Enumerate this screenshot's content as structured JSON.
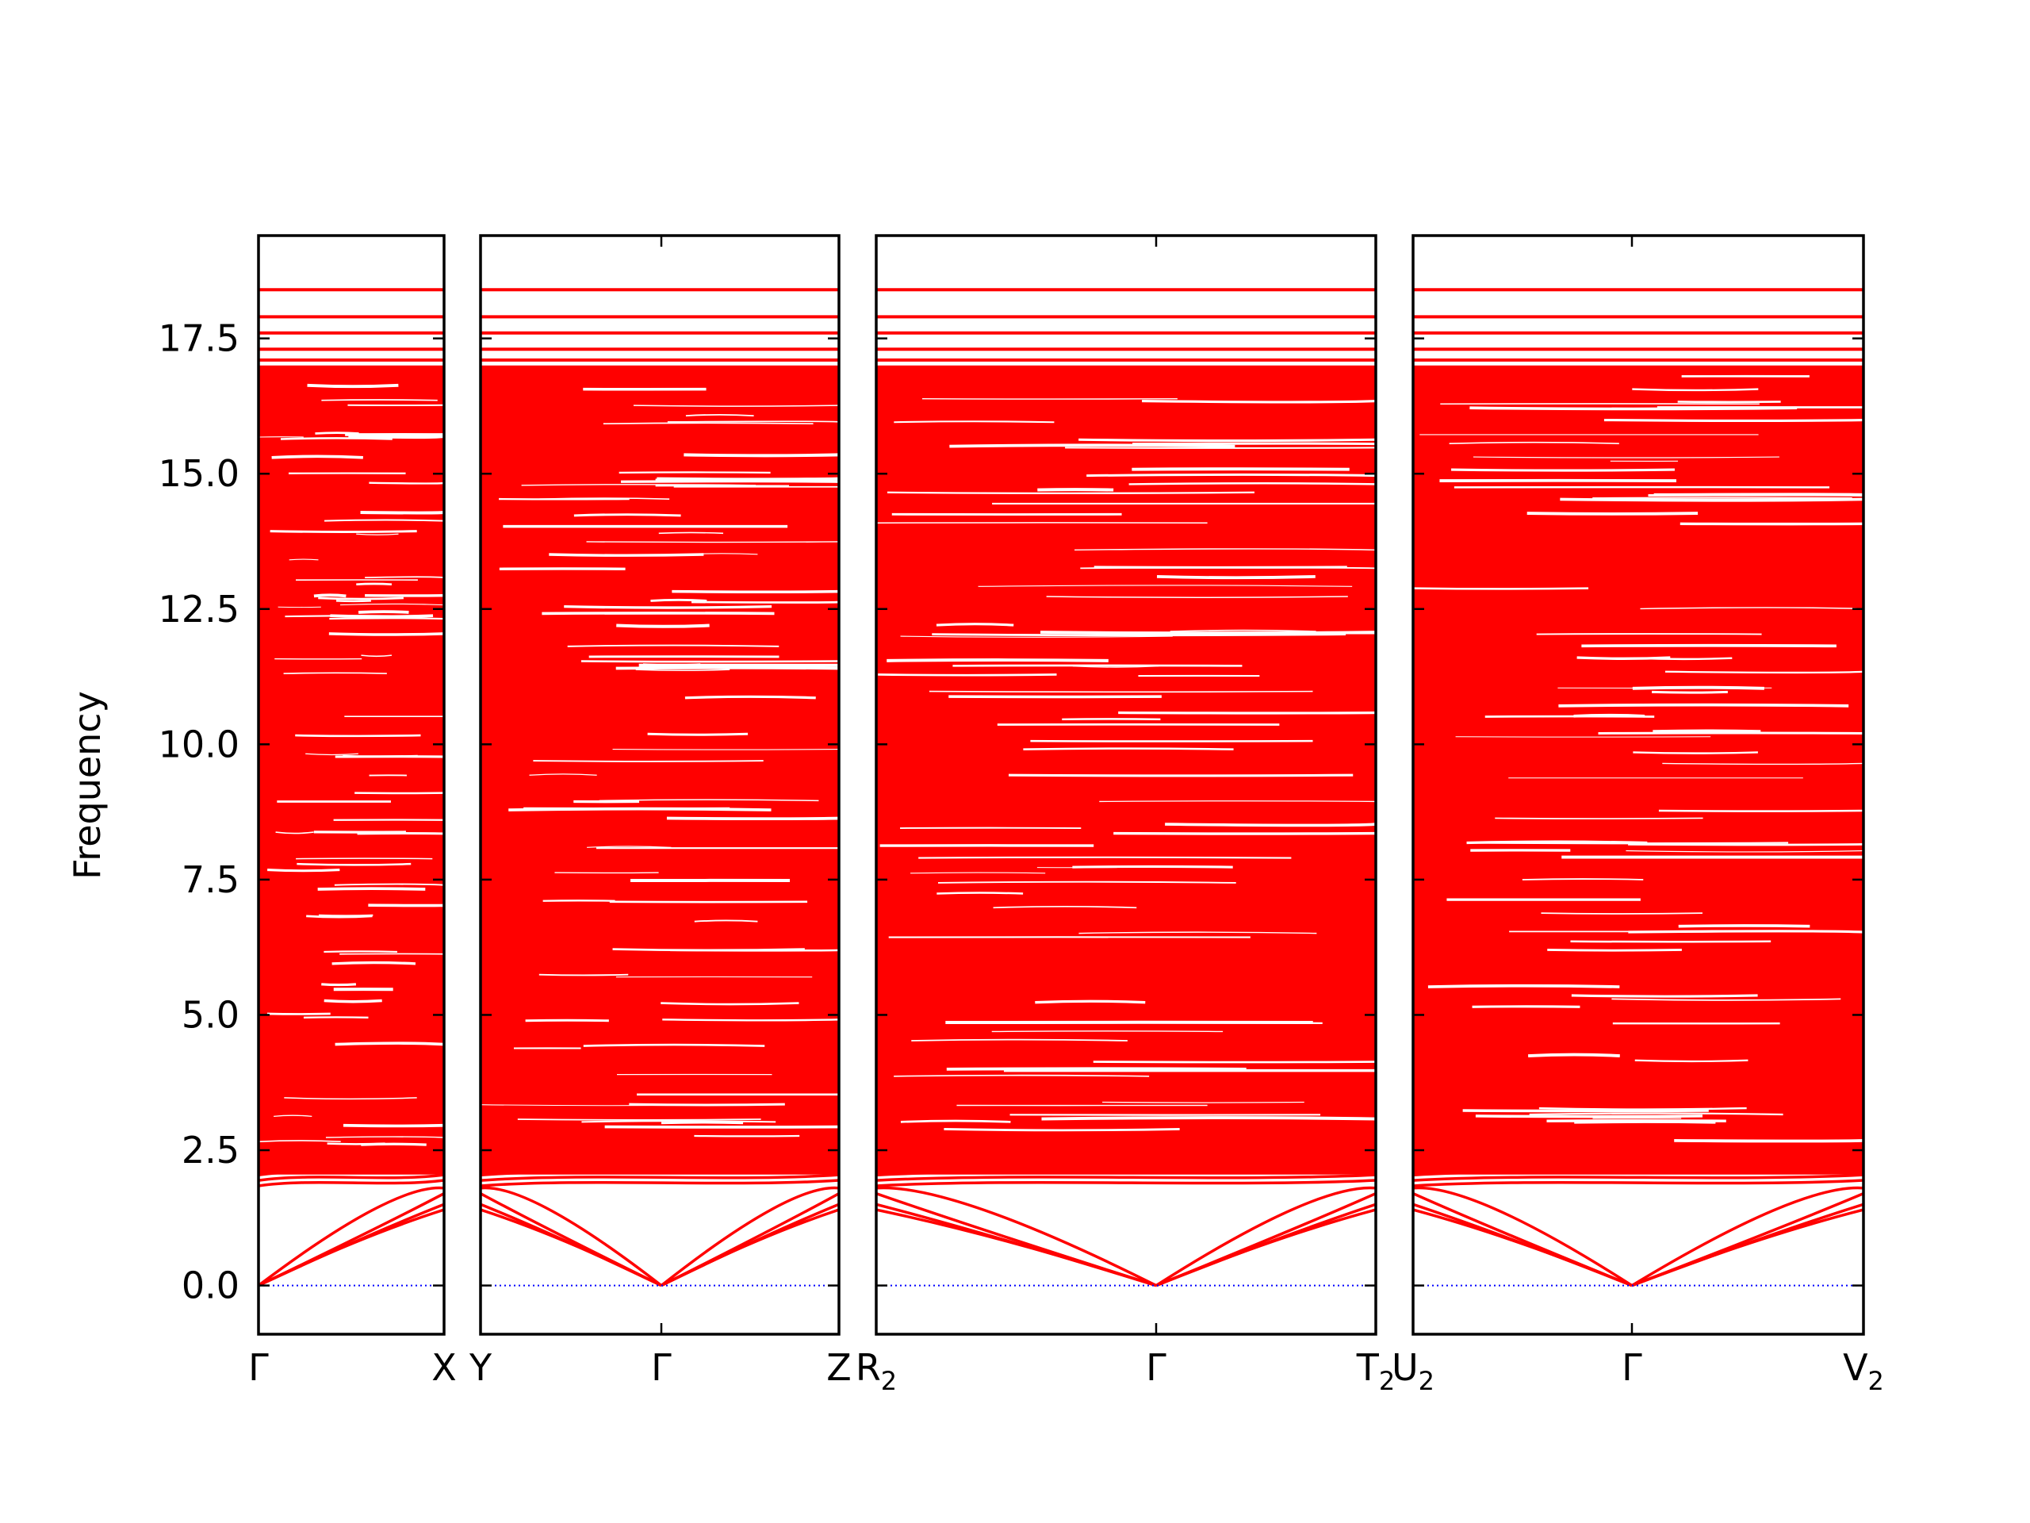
{
  "chart_data": {
    "type": "line",
    "title": "",
    "ylabel": "Frequency",
    "ylim": [
      -0.9,
      19.4
    ],
    "yticks": [
      "0.0",
      "2.5",
      "5.0",
      "7.5",
      "10.0",
      "12.5",
      "15.0",
      "17.5"
    ],
    "grid": false,
    "colors": {
      "bands": "#ff0000",
      "zero_line": "#0000ff",
      "axes": "#000000"
    },
    "panels": [
      {
        "path": [
          "Γ",
          "X"
        ],
        "ticks": [
          {
            "label": "Γ",
            "sub": ""
          },
          {
            "label": "X",
            "sub": ""
          }
        ]
      },
      {
        "path": [
          "Y",
          "Γ",
          "Z"
        ],
        "ticks": [
          {
            "label": "Y",
            "sub": ""
          },
          {
            "label": "Γ",
            "sub": ""
          },
          {
            "label": "Z",
            "sub": ""
          }
        ]
      },
      {
        "path": [
          "R2",
          "Γ",
          "T2"
        ],
        "ticks": [
          {
            "label": "R",
            "sub": "2"
          },
          {
            "label": "Γ",
            "sub": ""
          },
          {
            "label": "T",
            "sub": "2"
          }
        ]
      },
      {
        "path": [
          "U2",
          "Γ",
          "V2"
        ],
        "ticks": [
          {
            "label": "U",
            "sub": "2"
          },
          {
            "label": "Γ",
            "sub": ""
          },
          {
            "label": "V",
            "sub": "2"
          }
        ]
      }
    ],
    "series": [
      {
        "name": "",
        "kind": "acoustic-branches",
        "gamma": 0.0,
        "zone_edge": [
          1.4,
          1.5,
          1.7,
          1.8
        ]
      },
      {
        "name": "",
        "kind": "low-optical-edge",
        "values": [
          1.9,
          2.0,
          2.1,
          2.3
        ]
      },
      {
        "name": "",
        "kind": "dense-optical-bands",
        "range": [
          2.0,
          17.0
        ]
      },
      {
        "name": "",
        "kind": "top-bands",
        "values": [
          17.1,
          17.3,
          17.6,
          17.9,
          18.4
        ]
      },
      {
        "name": "",
        "kind": "zero-reference",
        "value": 0.0
      }
    ]
  }
}
